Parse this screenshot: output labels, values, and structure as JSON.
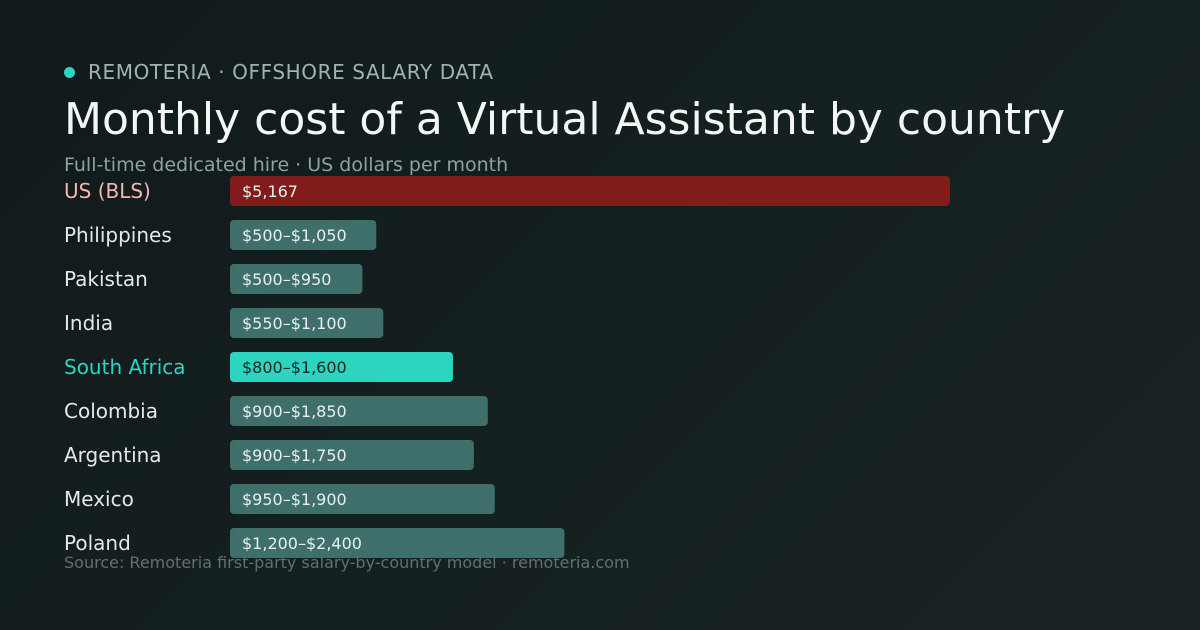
{
  "brand": {
    "label": "REMOTERIA · OFFSHORE SALARY DATA"
  },
  "title": "Monthly cost of a Virtual Assistant by country",
  "subtitle": "Full-time dedicated hire · US dollars per month",
  "source": "Source: Remoteria first-party salary-by-country model · remoteria.com",
  "colors": {
    "accent": "#2dd4bf",
    "baseline": "#801c1c",
    "baseline_label": "#f4b6b6",
    "bar": "#3f6f6b",
    "bar_text": "#e8efed",
    "highlight_text": "#0d2a27",
    "label": "#e3e9e7"
  },
  "chart_data": {
    "type": "bar",
    "orientation": "horizontal",
    "unit": "USD per month",
    "categories": [
      "US (BLS)",
      "Philippines",
      "Pakistan",
      "India",
      "South Africa",
      "Colombia",
      "Argentina",
      "Mexico",
      "Poland"
    ],
    "ranges": [
      [
        5167,
        5167
      ],
      [
        500,
        1050
      ],
      [
        500,
        950
      ],
      [
        550,
        1100
      ],
      [
        800,
        1600
      ],
      [
        900,
        1850
      ],
      [
        900,
        1750
      ],
      [
        950,
        1900
      ],
      [
        1200,
        2400
      ]
    ],
    "value_labels": [
      "$5,167",
      "$500–$1,050",
      "$500–$950",
      "$550–$1,100",
      "$800–$1,600",
      "$900–$1,850",
      "$900–$1,750",
      "$950–$1,900",
      "$1,200–$2,400"
    ],
    "bar_value": "max",
    "baseline_category": "US (BLS)",
    "highlight_category": "South Africa",
    "xlim": [
      0,
      5167
    ],
    "grid": false,
    "legend": "none"
  }
}
